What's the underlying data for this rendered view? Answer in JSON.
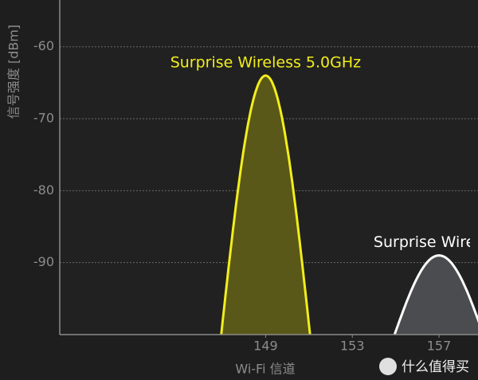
{
  "chart_data": {
    "type": "wifi-channel",
    "ylabel": "信号强度 [dBm]",
    "xlabel": "Wi-Fi 信道",
    "xlim": [
      139.5,
      158.8
    ],
    "xticks": [
      149,
      153,
      157
    ],
    "ylim": [
      -100,
      -53.5
    ],
    "yticks": [
      -60,
      -70,
      -80,
      -90
    ],
    "grid": true,
    "series": [
      {
        "name": "Surprise Wireless 5.0GHz",
        "color": "#f2ee1c",
        "fill": "#5a5818",
        "x": 149,
        "value": -64
      },
      {
        "name": "Surprise Wireless",
        "color": "#ffffff",
        "fill": "#4b4c4f",
        "x": 157,
        "value": -89
      }
    ],
    "watermark": "什么值得买"
  }
}
